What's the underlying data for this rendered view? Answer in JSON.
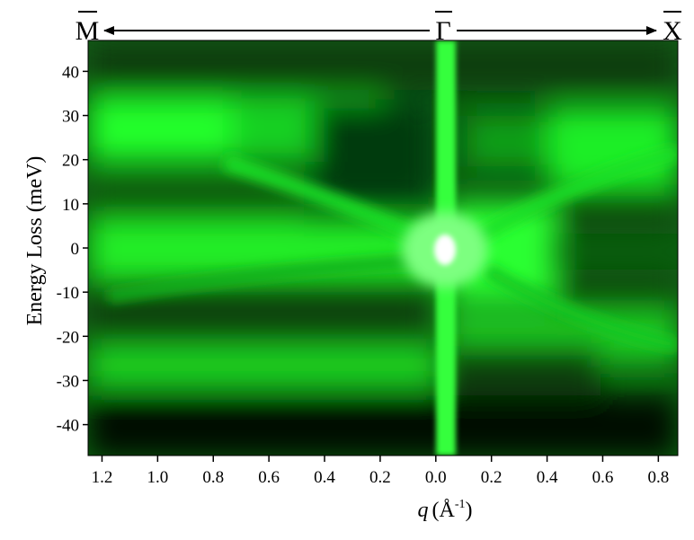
{
  "chart_data": {
    "type": "heatmap",
    "title": "",
    "xlabel_symbol": "q",
    "xlabel_unit": "(Å",
    "xlabel_exponent": "-1",
    "xlabel_close": ")",
    "ylabel": "Energy Loss (meV)",
    "xlim": [
      -1.25,
      0.87
    ],
    "ylim": [
      -47,
      47
    ],
    "x_ticks": [
      {
        "value": -1.2,
        "label": "1.2"
      },
      {
        "value": -1.0,
        "label": "1.0"
      },
      {
        "value": -0.8,
        "label": "0.8"
      },
      {
        "value": -0.6,
        "label": "0.6"
      },
      {
        "value": -0.4,
        "label": "0.4"
      },
      {
        "value": -0.2,
        "label": "0.2"
      },
      {
        "value": 0.0,
        "label": "0.0"
      },
      {
        "value": 0.2,
        "label": "0.2"
      },
      {
        "value": 0.4,
        "label": "0.4"
      },
      {
        "value": 0.6,
        "label": "0.6"
      },
      {
        "value": 0.8,
        "label": "0.8"
      }
    ],
    "y_ticks": [
      {
        "value": 40,
        "label": "40"
      },
      {
        "value": 30,
        "label": "30"
      },
      {
        "value": 20,
        "label": "20"
      },
      {
        "value": 10,
        "label": "10"
      },
      {
        "value": 0,
        "label": "0"
      },
      {
        "value": -10,
        "label": "-10"
      },
      {
        "value": -20,
        "label": "-20"
      },
      {
        "value": -30,
        "label": "-30"
      },
      {
        "value": -40,
        "label": "-40"
      }
    ],
    "high_symmetry_points": [
      {
        "label": "M",
        "position": -1.25
      },
      {
        "label": "Γ",
        "position": 0.0
      },
      {
        "label": "X",
        "position": 0.87
      }
    ],
    "colormap": {
      "low": "#000000",
      "mid": "#00ff00",
      "high": "#ffffff"
    },
    "grid": false,
    "legend": "none"
  }
}
